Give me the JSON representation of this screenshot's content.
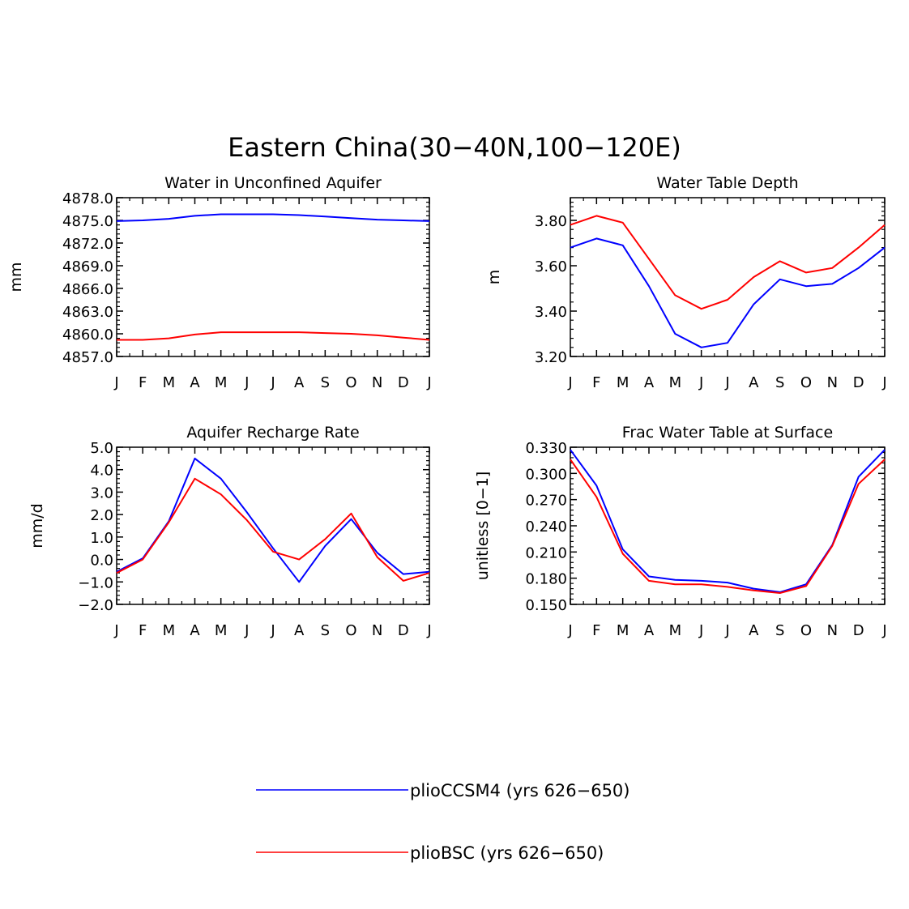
{
  "title": "Eastern China(30−40N,100−120E)",
  "colors": {
    "plioCCSM4": "#0000ff",
    "plioBSC": "#ff0000",
    "axis": "#000000"
  },
  "legend": [
    {
      "key": "plioCCSM4",
      "label": "plioCCSM4 (yrs 626−650)"
    },
    {
      "key": "plioBSC",
      "label": "plioBSC (yrs 626−650)"
    }
  ],
  "chart_data": [
    {
      "type": "line",
      "title": "Water in Unconfined Aquifer",
      "ylabel": "mm",
      "categories": [
        "J",
        "F",
        "M",
        "A",
        "M",
        "J",
        "J",
        "A",
        "S",
        "O",
        "N",
        "D",
        "J"
      ],
      "ylim": [
        4857.0,
        4878.0
      ],
      "yticks": [
        4857,
        4860,
        4863,
        4866,
        4869,
        4872,
        4875,
        4878
      ],
      "ytick_labels": [
        "4857.0",
        "4860.0",
        "4863.0",
        "4866.0",
        "4869.0",
        "4872.0",
        "4875.0",
        "4878.0"
      ],
      "series": [
        {
          "name": "plioCCSM4",
          "values": [
            4874.9,
            4875.0,
            4875.2,
            4875.6,
            4875.8,
            4875.8,
            4875.8,
            4875.7,
            4875.5,
            4875.3,
            4875.1,
            4875.0,
            4874.9
          ]
        },
        {
          "name": "plioBSC",
          "values": [
            4859.2,
            4859.2,
            4859.4,
            4859.9,
            4860.2,
            4860.2,
            4860.2,
            4860.2,
            4860.1,
            4860.0,
            4859.8,
            4859.5,
            4859.2
          ]
        }
      ]
    },
    {
      "type": "line",
      "title": "Water Table Depth",
      "ylabel": "m",
      "categories": [
        "J",
        "F",
        "M",
        "A",
        "M",
        "J",
        "J",
        "A",
        "S",
        "O",
        "N",
        "D",
        "J"
      ],
      "ylim": [
        3.2,
        3.9
      ],
      "yticks": [
        3.2,
        3.4,
        3.6,
        3.8
      ],
      "ytick_labels": [
        "3.20",
        "3.40",
        "3.60",
        "3.80"
      ],
      "series": [
        {
          "name": "plioCCSM4",
          "values": [
            3.68,
            3.72,
            3.69,
            3.51,
            3.3,
            3.24,
            3.26,
            3.43,
            3.54,
            3.51,
            3.52,
            3.59,
            3.68
          ]
        },
        {
          "name": "plioBSC",
          "values": [
            3.78,
            3.82,
            3.79,
            3.63,
            3.47,
            3.41,
            3.45,
            3.55,
            3.62,
            3.57,
            3.59,
            3.68,
            3.78
          ]
        }
      ]
    },
    {
      "type": "line",
      "title": "Aquifer Recharge Rate",
      "ylabel": "mm/d",
      "categories": [
        "J",
        "F",
        "M",
        "A",
        "M",
        "J",
        "J",
        "A",
        "S",
        "O",
        "N",
        "D",
        "J"
      ],
      "ylim": [
        -2.0,
        5.0
      ],
      "yticks": [
        -2,
        -1,
        0,
        1,
        2,
        3,
        4,
        5
      ],
      "ytick_labels": [
        "−2.0",
        "−1.0",
        "0.0",
        "1.0",
        "2.0",
        "3.0",
        "4.0",
        "5.0"
      ],
      "series": [
        {
          "name": "plioCCSM4",
          "values": [
            -0.55,
            0.05,
            1.7,
            4.5,
            3.6,
            2.1,
            0.5,
            -1.0,
            0.6,
            1.8,
            0.3,
            -0.65,
            -0.55
          ]
        },
        {
          "name": "plioBSC",
          "values": [
            -0.6,
            0.0,
            1.65,
            3.6,
            2.9,
            1.75,
            0.35,
            0.0,
            0.9,
            2.05,
            0.1,
            -0.95,
            -0.6
          ]
        }
      ]
    },
    {
      "type": "line",
      "title": "Frac Water Table at Surface",
      "ylabel": "unitless [0−1]",
      "categories": [
        "J",
        "F",
        "M",
        "A",
        "M",
        "J",
        "J",
        "A",
        "S",
        "O",
        "N",
        "D",
        "J"
      ],
      "ylim": [
        0.15,
        0.33
      ],
      "yticks": [
        0.15,
        0.18,
        0.21,
        0.24,
        0.27,
        0.3,
        0.33
      ],
      "ytick_labels": [
        "0.150",
        "0.180",
        "0.210",
        "0.240",
        "0.270",
        "0.300",
        "0.330"
      ],
      "series": [
        {
          "name": "plioCCSM4",
          "values": [
            0.327,
            0.286,
            0.213,
            0.182,
            0.178,
            0.177,
            0.175,
            0.168,
            0.164,
            0.173,
            0.218,
            0.296,
            0.327
          ]
        },
        {
          "name": "plioBSC",
          "values": [
            0.316,
            0.273,
            0.208,
            0.177,
            0.173,
            0.173,
            0.17,
            0.166,
            0.163,
            0.171,
            0.217,
            0.288,
            0.316
          ]
        }
      ]
    }
  ]
}
